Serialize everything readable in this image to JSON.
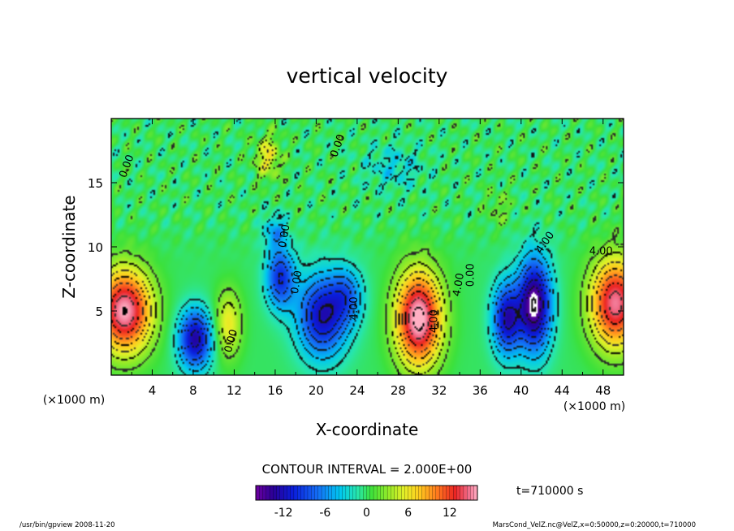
{
  "chart_data": {
    "type": "heatmap",
    "title": "vertical velocity",
    "xlabel": "X-coordinate",
    "ylabel": "Z-coordinate",
    "x_unit_left": "(×1000 m)",
    "x_unit_right": "(×1000 m)",
    "xlim": [
      0,
      50
    ],
    "ylim": [
      0,
      20
    ],
    "x_ticks": [
      4,
      8,
      12,
      16,
      20,
      24,
      28,
      32,
      36,
      40,
      44,
      48
    ],
    "y_ticks": [
      5,
      10,
      15
    ],
    "contour_interval_text": "CONTOUR INTERVAL = 2.000E+00",
    "time_text": "t=710000 s",
    "colorbar": {
      "min": -16,
      "max": 16,
      "ticks": [
        -12,
        -6,
        0,
        6,
        12
      ]
    },
    "contour_labels": [
      {
        "text": "0.00",
        "x": 1.8,
        "y": 16.2,
        "rot": -70
      },
      {
        "text": "0.00",
        "x": 22.4,
        "y": 17.8,
        "rot": -70
      },
      {
        "text": "0.00",
        "x": 17.2,
        "y": 10.8,
        "rot": -80
      },
      {
        "text": "0.00",
        "x": 18.4,
        "y": 7.2,
        "rot": -80
      },
      {
        "text": "4.00",
        "x": 24.0,
        "y": 5.2,
        "rot": -90
      },
      {
        "text": "0.00",
        "x": 35.4,
        "y": 7.8,
        "rot": -90
      },
      {
        "text": "4.00",
        "x": 31.8,
        "y": 4.2,
        "rot": -90
      },
      {
        "text": "4.00",
        "x": 34.2,
        "y": 7.0,
        "rot": -80
      },
      {
        "text": "0.00",
        "x": 12.0,
        "y": 2.6,
        "rot": -75
      },
      {
        "text": "4.00",
        "x": 42.6,
        "y": 10.2,
        "rot": -55
      },
      {
        "text": "4.00",
        "x": 47.8,
        "y": 9.4,
        "rot": 0
      }
    ],
    "features": [
      {
        "x": 1.3,
        "y": 5.0,
        "sx": 2.6,
        "sy": 3.2,
        "amp": 16
      },
      {
        "x": 8.2,
        "y": 2.8,
        "sx": 1.6,
        "sy": 2.3,
        "amp": -13
      },
      {
        "x": 11.4,
        "y": 4.0,
        "sx": 1.3,
        "sy": 2.6,
        "amp": 6
      },
      {
        "x": 16.5,
        "y": 7.6,
        "sx": 1.4,
        "sy": 2.4,
        "amp": -10
      },
      {
        "x": 20.6,
        "y": 4.6,
        "sx": 2.4,
        "sy": 3.2,
        "amp": -12
      },
      {
        "x": 23.0,
        "y": 6.2,
        "sx": 1.6,
        "sy": 2.2,
        "amp": -6
      },
      {
        "x": 30.0,
        "y": 4.4,
        "sx": 2.2,
        "sy": 3.6,
        "amp": 17
      },
      {
        "x": 38.6,
        "y": 4.4,
        "sx": 1.4,
        "sy": 2.8,
        "amp": -12
      },
      {
        "x": 41.3,
        "y": 5.5,
        "sx": 1.6,
        "sy": 3.6,
        "amp": -16
      },
      {
        "x": 49.2,
        "y": 5.6,
        "sx": 2.4,
        "sy": 3.4,
        "amp": 15
      },
      {
        "x": 15.3,
        "y": 17.0,
        "sx": 1.2,
        "sy": 1.6,
        "amp": 6
      },
      {
        "x": 16.0,
        "y": 11.2,
        "sx": 1.1,
        "sy": 1.3,
        "amp": -5
      },
      {
        "x": 27.6,
        "y": 16.2,
        "sx": 2.8,
        "sy": 1.7,
        "amp": -3
      },
      {
        "x": 37.8,
        "y": 13.0,
        "sx": 1.2,
        "sy": 1.4,
        "amp": 2
      }
    ]
  },
  "footer": {
    "left": "/usr/bin/gpview   2008-11-20",
    "right": "MarsCond_VelZ.nc@VelZ,x=0:50000,z=0:20000,t=710000"
  }
}
